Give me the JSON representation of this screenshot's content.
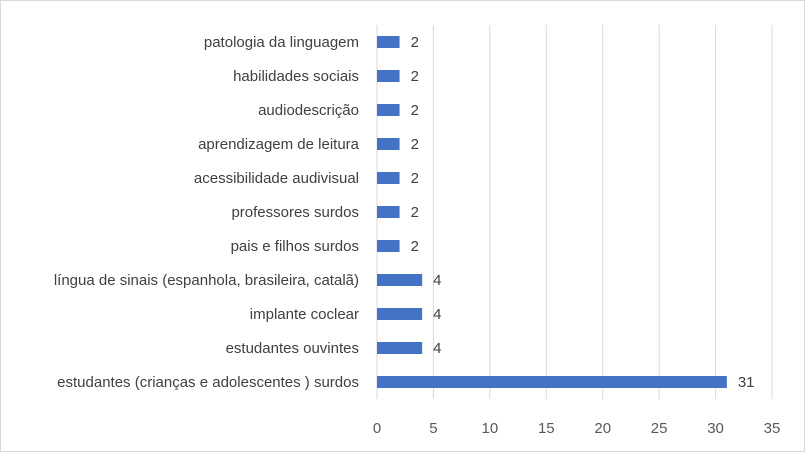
{
  "chart_data": {
    "type": "bar",
    "orientation": "horizontal",
    "categories": [
      "patologia da linguagem",
      "habilidades sociais",
      "audiodescrição",
      "aprendizagem de leitura",
      "acessibilidade audivisual",
      "professores surdos",
      "pais e filhos surdos",
      "língua de sinais (espanhola, brasileira, catalã)",
      "implante coclear",
      "estudantes ouvintes",
      "estudantes (crianças e adolescentes ) surdos"
    ],
    "values": [
      2,
      2,
      2,
      2,
      2,
      2,
      2,
      4,
      4,
      4,
      31
    ],
    "xlim": [
      0,
      35
    ],
    "xticks": [
      0,
      5,
      10,
      15,
      20,
      25,
      30,
      35
    ],
    "grid": "vertical",
    "legend": "none",
    "data_labels": true,
    "title": "",
    "xlabel": "",
    "ylabel": "",
    "bar_color": "#4472c4",
    "grid_color": "#d9d9d9"
  }
}
